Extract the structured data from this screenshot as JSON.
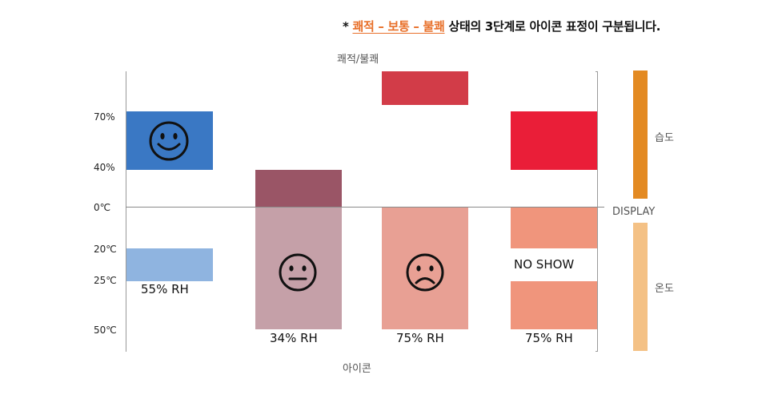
{
  "note": {
    "star": "* ",
    "highlight": "쾌적 – 보통 – 불쾌",
    "rest": " 상태의 3단계로 아이콘 표정이 구분됩니다."
  },
  "captions": {
    "top": "쾌적/불쾌",
    "bottom": "아이콘"
  },
  "axis_labels": {
    "h70": "70%",
    "h40": "40%",
    "t0": "0℃",
    "t20": "20℃",
    "t25": "25℃",
    "t50": "50℃"
  },
  "columns": [
    {
      "rh_label": "55% RH",
      "face": "smile-face-icon"
    },
    {
      "rh_label": "34% RH",
      "face": "neutral-face-icon"
    },
    {
      "rh_label": "75% RH",
      "face": "frown-face-icon"
    },
    {
      "rh_label": "75% RH",
      "noshow": "NO SHOW"
    }
  ],
  "side": {
    "humidity": "습도",
    "display": "DISPLAY",
    "temperature": "온도"
  },
  "colors": {
    "accent_orange": "#e8702a",
    "humidity_bar": "#e38a22",
    "temperature_bar": "#f4c185",
    "blue": "#3a78c4",
    "light_blue": "#8fb4e0",
    "mauve_dark": "#9a5566",
    "mauve_light": "#c5a0a8",
    "red_dark": "#d23c48",
    "salmon": "#e8a094",
    "red_bright": "#ea1e38",
    "salmon_bright": "#f0957c"
  }
}
